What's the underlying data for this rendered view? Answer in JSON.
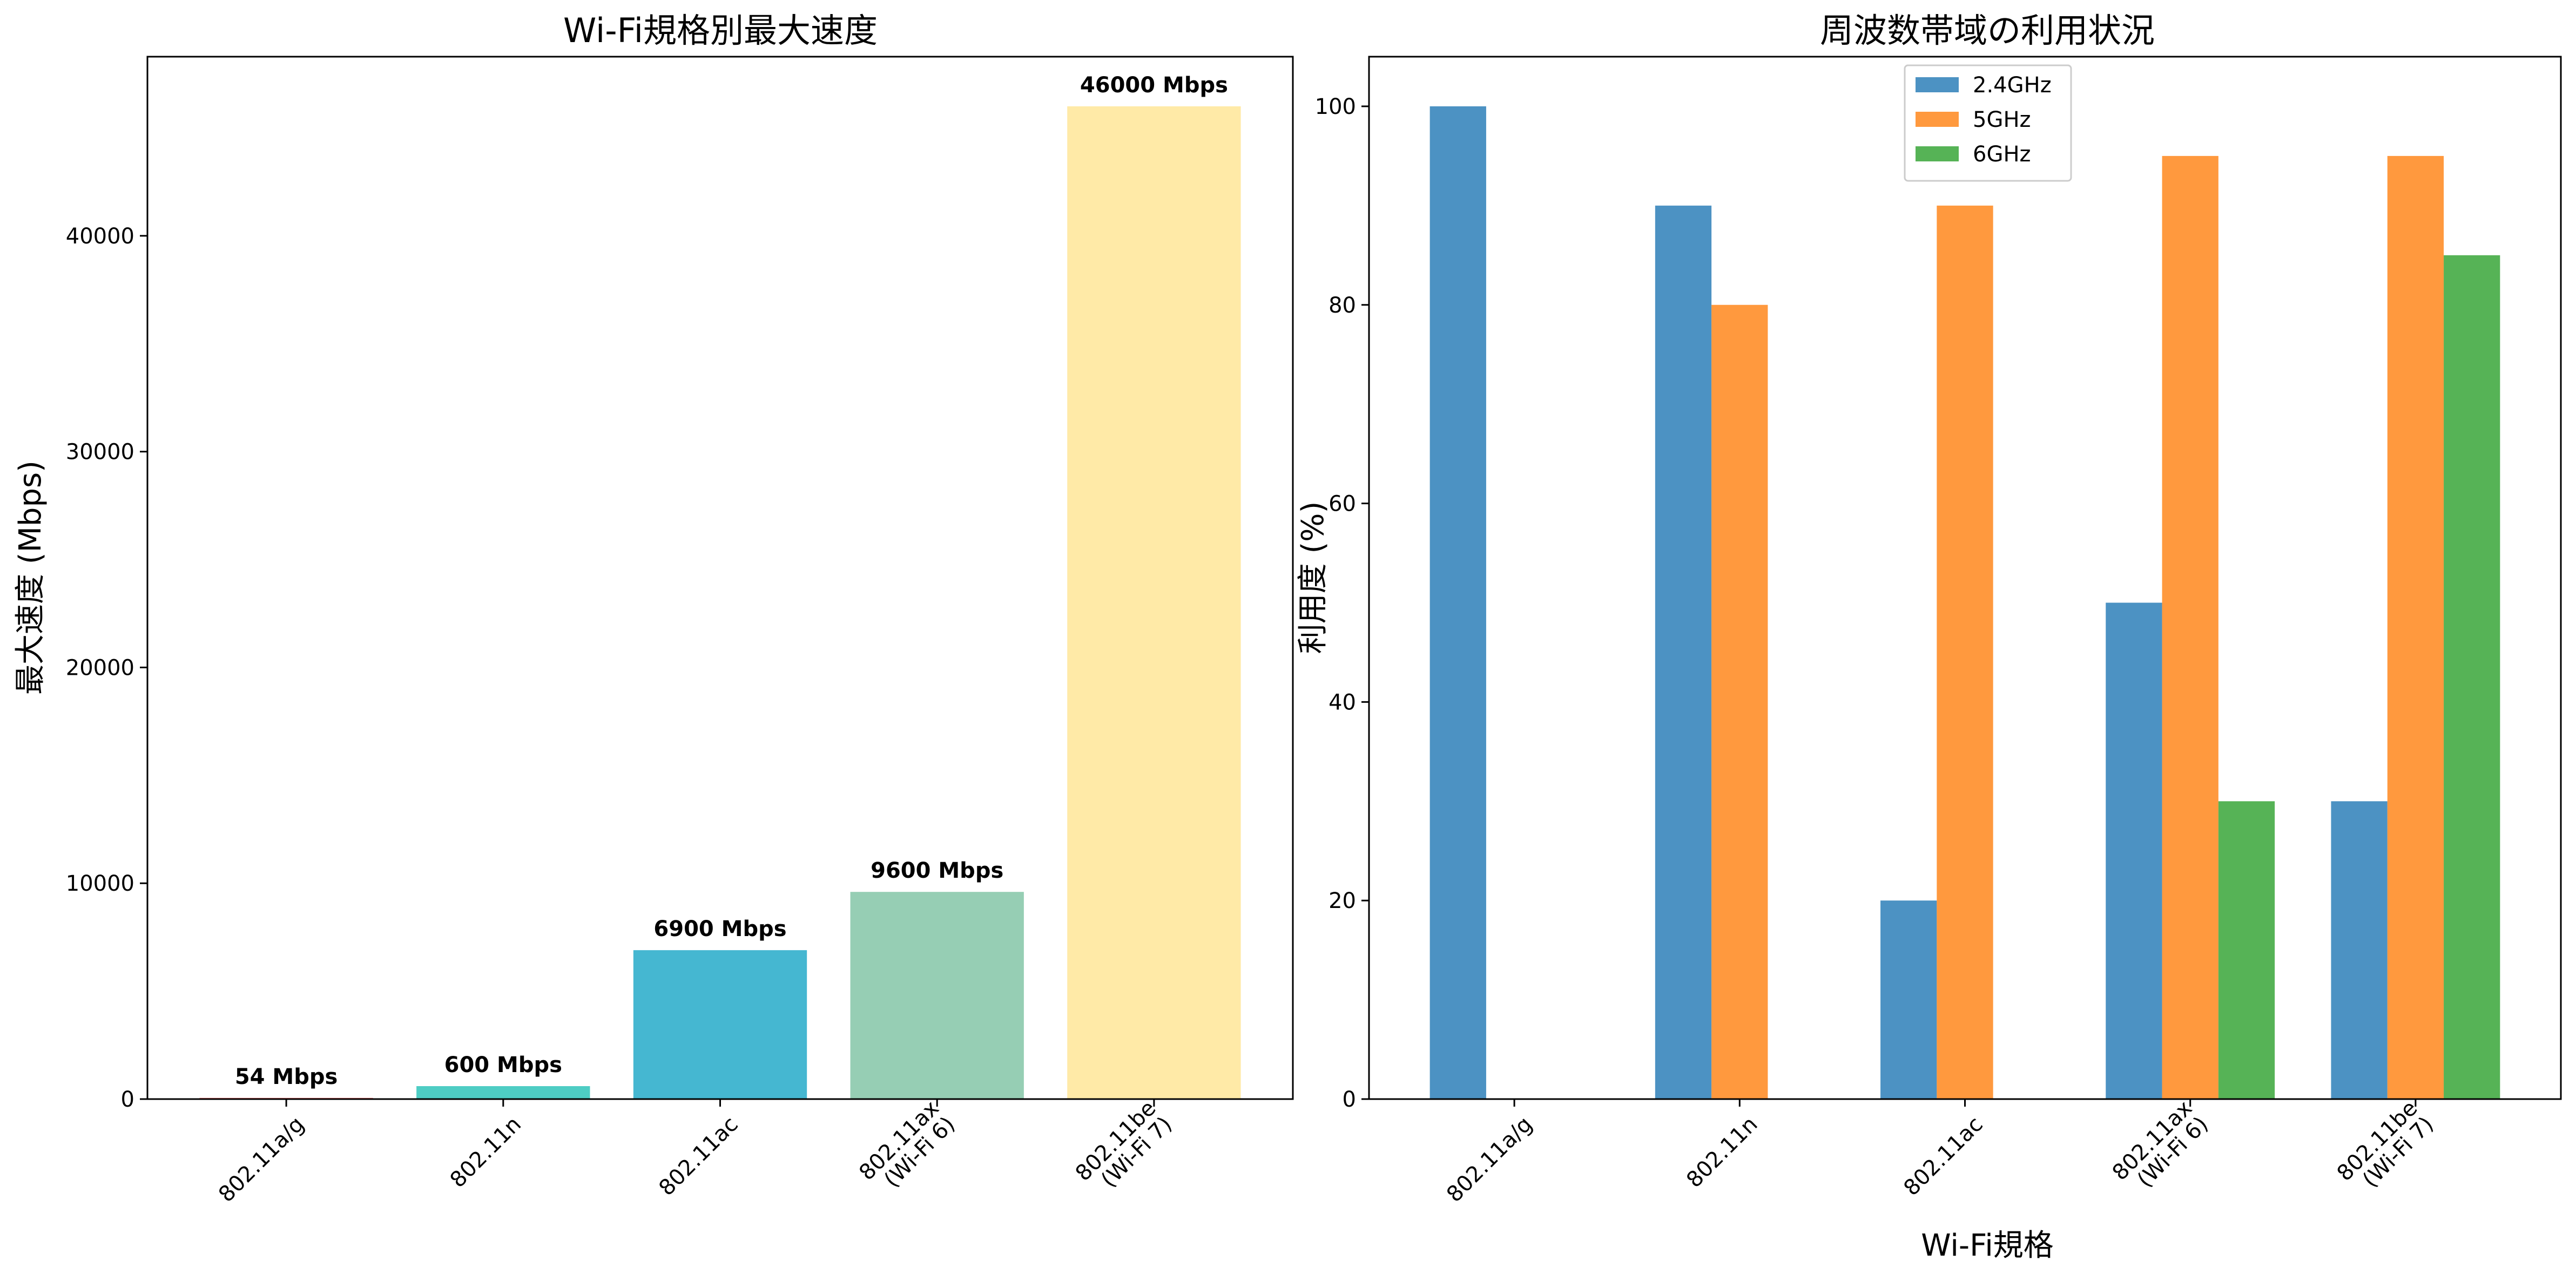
{
  "chart_data": [
    {
      "type": "bar",
      "title": "Wi-Fi規格別最大速度",
      "xlabel": "",
      "ylabel": "最大速度 (Mbps)",
      "ylim": [
        0,
        48300
      ],
      "yticks": [
        "0",
        "10000",
        "20000",
        "30000",
        "40000"
      ],
      "categories": [
        [
          "802.11a/g"
        ],
        [
          "802.11n"
        ],
        [
          "802.11ac"
        ],
        [
          "802.11ax",
          "(Wi-Fi 6)"
        ],
        [
          "802.11be",
          "(Wi-Fi 7)"
        ]
      ],
      "values": [
        54,
        600,
        6900,
        9600,
        46000
      ],
      "value_labels": [
        "54 Mbps",
        "600 Mbps",
        "6900 Mbps",
        "9600 Mbps",
        "46000 Mbps"
      ],
      "colors": [
        "#ff6b6b",
        "#4ecdc4",
        "#45b7d1",
        "#96ceb4",
        "#ffeaa7"
      ],
      "grid": false,
      "legend": "none"
    },
    {
      "type": "bar",
      "title": "周波数帯域の利用状況",
      "xlabel": "Wi-Fi規格",
      "ylabel": "利用度 (%)",
      "ylim": [
        0,
        105
      ],
      "yticks": [
        "0",
        "20",
        "40",
        "60",
        "80",
        "100"
      ],
      "categories": [
        [
          "802.11a/g"
        ],
        [
          "802.11n"
        ],
        [
          "802.11ac"
        ],
        [
          "802.11ax",
          "(Wi-Fi 6)"
        ],
        [
          "802.11be",
          "(Wi-Fi 7)"
        ]
      ],
      "series": [
        {
          "name": "2.4GHz",
          "values": [
            100,
            90,
            20,
            50,
            30
          ],
          "color": "#1f77b4"
        },
        {
          "name": "5GHz",
          "values": [
            0,
            80,
            90,
            95,
            95
          ],
          "color": "#ff7f0e"
        },
        {
          "name": "6GHz",
          "values": [
            0,
            0,
            0,
            30,
            85
          ],
          "color": "#2ca02c"
        }
      ],
      "bar_opacity": 0.8,
      "grid": false,
      "legend": "top-center"
    }
  ]
}
